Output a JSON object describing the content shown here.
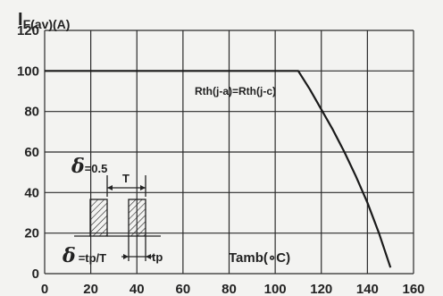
{
  "chart_data": {
    "type": "line",
    "title": "",
    "ylabel_main": "I",
    "ylabel_sub": "F(av)",
    "ylabel_unit": "(A)",
    "xlabel": "Tamb(∘C)",
    "xlim": [
      0,
      160
    ],
    "ylim": [
      0,
      120
    ],
    "x_ticks": [
      0,
      20,
      40,
      60,
      80,
      100,
      120,
      140,
      160
    ],
    "y_ticks": [
      0,
      20,
      40,
      60,
      80,
      100,
      120
    ],
    "grid": true,
    "series": [
      {
        "x": [
          0,
          110,
          115,
          120,
          125,
          130,
          135,
          140,
          145,
          150
        ],
        "y": [
          100,
          100,
          91,
          81,
          71,
          60,
          48,
          35,
          20,
          3
        ]
      }
    ],
    "annotations": {
      "rth": "Rth(j-a)=Rth(j-c)",
      "delta_symbol": "δ",
      "delta_value": "=0.5",
      "delta_formula": "=tp/T",
      "period_label": "T",
      "pulse_label": "tp"
    }
  }
}
